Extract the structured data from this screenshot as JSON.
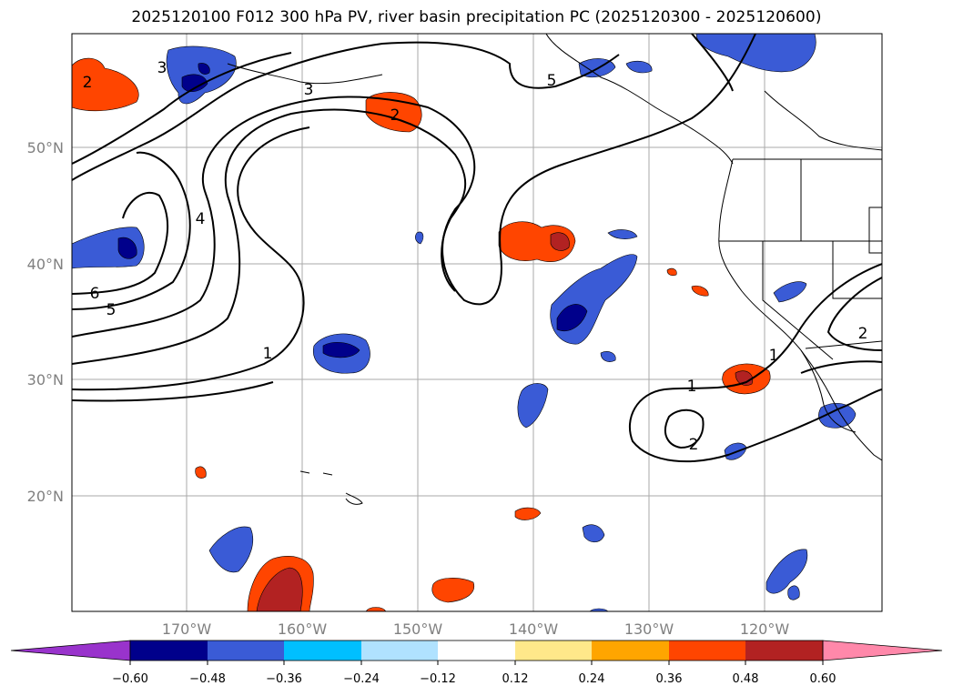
{
  "title": "2025120100 F012 300 hPa PV, river basin precipitation PC (2025120300 - 2025120600)",
  "map": {
    "lat_labels": [
      "50°N",
      "40°N",
      "30°N",
      "20°N"
    ],
    "lon_labels": [
      "170°W",
      "160°W",
      "150°W",
      "140°W",
      "130°W",
      "120°W"
    ],
    "contour_labels": [
      "2",
      "3",
      "3",
      "5",
      "2",
      "4",
      "6",
      "5",
      "1",
      "1",
      "2",
      "1",
      "2"
    ]
  },
  "colorbar": {
    "ticks": [
      "−0.60",
      "−0.48",
      "−0.36",
      "−0.24",
      "−0.12",
      "0.12",
      "0.24",
      "0.36",
      "0.48",
      "0.60"
    ],
    "colors": [
      "#9933cc",
      "#00008b",
      "#3a5bd6",
      "#00bfff",
      "#b0e2ff",
      "#ffffff",
      "#ffe88a",
      "#ffa500",
      "#ff4500",
      "#b22222",
      "#ff88aa"
    ]
  },
  "colors": {
    "grid": "#aaaaaa",
    "contour": "#000000",
    "coast": "#000000",
    "frame": "#000000"
  }
}
